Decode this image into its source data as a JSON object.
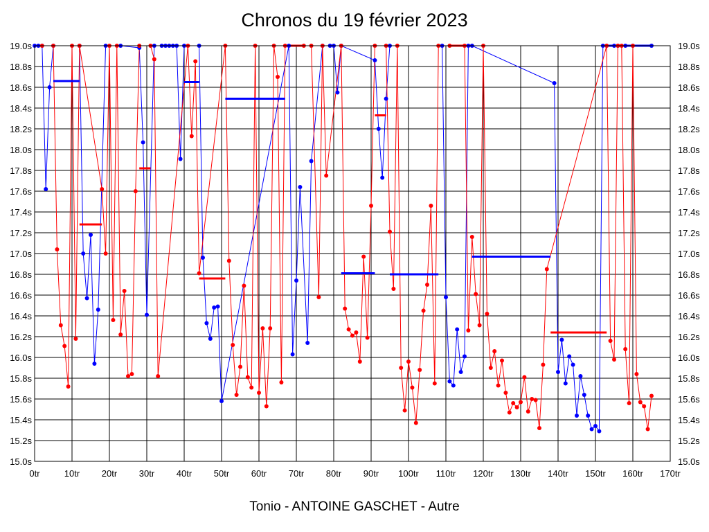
{
  "chart_data": {
    "type": "line",
    "title": "Chronos du 19 février 2023",
    "xlabel": "Tonio - ANTOINE GASCHET - Autre",
    "ylabel": "",
    "xlim": [
      0,
      170
    ],
    "ylim": [
      15.0,
      19.0
    ],
    "grid": true,
    "legend": "none",
    "x_ticks": [
      "0tr",
      "10tr",
      "20tr",
      "30tr",
      "40tr",
      "50tr",
      "60tr",
      "70tr",
      "80tr",
      "90tr",
      "100tr",
      "110tr",
      "120tr",
      "130tr",
      "140tr",
      "150tr",
      "160tr",
      "170tr"
    ],
    "y_ticks": [
      "19.0s",
      "18.8s",
      "18.6s",
      "18.4s",
      "18.2s",
      "18.0s",
      "17.8s",
      "17.6s",
      "17.4s",
      "17.2s",
      "17.0s",
      "16.8s",
      "16.6s",
      "16.4s",
      "16.2s",
      "16.0s",
      "15.8s",
      "15.6s",
      "15.4s",
      "15.2s",
      "15.0s"
    ],
    "colors": {
      "blue": "#0000ff",
      "red": "#ff0000",
      "grid": "#000000"
    },
    "series": [
      {
        "color": "#0000ff",
        "points": [
          [
            0,
            19.0
          ],
          [
            1,
            19.0
          ],
          [
            2,
            19.0
          ],
          [
            3,
            17.62
          ],
          [
            4,
            18.6
          ],
          [
            5,
            19.0
          ],
          [
            12,
            19.0
          ],
          [
            13,
            17.0
          ],
          [
            14,
            16.57
          ],
          [
            15,
            17.18
          ],
          [
            16,
            15.94
          ],
          [
            17,
            16.46
          ],
          [
            19,
            19.0
          ],
          [
            23,
            19.0
          ],
          [
            28,
            18.98
          ],
          [
            29,
            18.07
          ],
          [
            30,
            16.41
          ],
          [
            32,
            19.0
          ],
          [
            34,
            19.0
          ],
          [
            35,
            19.0
          ],
          [
            36,
            19.0
          ],
          [
            37,
            19.0
          ],
          [
            38,
            19.0
          ],
          [
            39,
            17.91
          ],
          [
            40,
            19.0
          ],
          [
            44,
            19.0
          ],
          [
            45,
            16.96
          ],
          [
            46,
            16.33
          ],
          [
            47,
            16.18
          ],
          [
            48,
            16.48
          ],
          [
            49,
            16.49
          ],
          [
            50,
            15.58
          ],
          [
            68,
            19.0
          ],
          [
            69,
            16.03
          ],
          [
            70,
            16.74
          ],
          [
            71,
            17.64
          ],
          [
            73,
            16.14
          ],
          [
            74,
            17.89
          ],
          [
            77,
            19.0
          ],
          [
            79,
            19.0
          ],
          [
            80,
            19.0
          ],
          [
            81,
            18.55
          ],
          [
            82,
            19.0
          ],
          [
            91,
            18.86
          ],
          [
            92,
            18.2
          ],
          [
            93,
            17.73
          ],
          [
            94,
            18.49
          ],
          [
            95,
            19.0
          ],
          [
            109,
            19.0
          ],
          [
            110,
            16.58
          ],
          [
            111,
            15.77
          ],
          [
            112,
            15.73
          ],
          [
            113,
            16.27
          ],
          [
            114,
            15.86
          ],
          [
            115,
            16.01
          ],
          [
            116,
            19.0
          ],
          [
            117,
            19.0
          ],
          [
            139,
            18.64
          ],
          [
            140,
            15.86
          ],
          [
            141,
            16.17
          ],
          [
            142,
            15.75
          ],
          [
            143,
            16.01
          ],
          [
            144,
            15.93
          ],
          [
            145,
            15.44
          ],
          [
            146,
            15.82
          ],
          [
            147,
            15.64
          ],
          [
            148,
            15.44
          ],
          [
            149,
            15.31
          ],
          [
            150,
            15.34
          ],
          [
            151,
            15.29
          ],
          [
            152,
            19.0
          ],
          [
            153,
            19.0
          ],
          [
            155,
            19.0
          ],
          [
            156,
            19.0
          ],
          [
            158,
            19.0
          ],
          [
            160,
            19.0
          ],
          [
            165,
            19.0
          ]
        ]
      },
      {
        "color": "#ff0000",
        "points": [
          [
            2,
            19.0
          ],
          [
            5,
            19.0
          ],
          [
            6,
            17.04
          ],
          [
            7,
            16.31
          ],
          [
            8,
            16.11
          ],
          [
            9,
            15.72
          ],
          [
            10,
            19.0
          ],
          [
            11,
            16.18
          ],
          [
            12,
            19.0
          ],
          [
            18,
            17.62
          ],
          [
            19,
            17.0
          ],
          [
            20,
            19.0
          ],
          [
            21,
            16.36
          ],
          [
            22,
            19.0
          ],
          [
            23,
            16.22
          ],
          [
            24,
            16.64
          ],
          [
            25,
            15.82
          ],
          [
            26,
            15.84
          ],
          [
            27,
            17.6
          ],
          [
            28,
            19.0
          ],
          [
            31,
            19.0
          ],
          [
            32,
            18.87
          ],
          [
            33,
            15.82
          ],
          [
            41,
            19.0
          ],
          [
            42,
            18.13
          ],
          [
            43,
            18.85
          ],
          [
            44,
            16.81
          ],
          [
            51,
            19.0
          ],
          [
            52,
            16.93
          ],
          [
            53,
            16.12
          ],
          [
            54,
            15.64
          ],
          [
            55,
            15.91
          ],
          [
            56,
            16.69
          ],
          [
            57,
            15.81
          ],
          [
            58,
            15.71
          ],
          [
            59,
            19.0
          ],
          [
            60,
            15.66
          ],
          [
            61,
            16.28
          ],
          [
            62,
            15.53
          ],
          [
            63,
            16.28
          ],
          [
            64,
            19.0
          ],
          [
            65,
            18.7
          ],
          [
            66,
            15.76
          ],
          [
            67,
            19.0
          ],
          [
            72,
            19.0
          ],
          [
            74,
            19.0
          ],
          [
            76,
            16.58
          ],
          [
            77,
            19.0
          ],
          [
            78,
            17.75
          ],
          [
            82,
            19.0
          ],
          [
            83,
            16.47
          ],
          [
            84,
            16.27
          ],
          [
            85,
            16.21
          ],
          [
            86,
            16.24
          ],
          [
            87,
            15.96
          ],
          [
            88,
            16.97
          ],
          [
            89,
            16.19
          ],
          [
            90,
            17.46
          ],
          [
            91,
            19.0
          ],
          [
            94,
            19.0
          ],
          [
            95,
            17.21
          ],
          [
            96,
            16.66
          ],
          [
            97,
            19.0
          ],
          [
            98,
            15.9
          ],
          [
            99,
            15.49
          ],
          [
            100,
            15.96
          ],
          [
            101,
            15.71
          ],
          [
            102,
            15.37
          ],
          [
            103,
            15.88
          ],
          [
            104,
            16.45
          ],
          [
            105,
            16.7
          ],
          [
            106,
            17.46
          ],
          [
            107,
            15.75
          ],
          [
            108,
            19.0
          ],
          [
            111,
            19.0
          ],
          [
            115,
            19.0
          ],
          [
            116,
            16.26
          ],
          [
            117,
            17.16
          ],
          [
            118,
            16.61
          ],
          [
            119,
            16.31
          ],
          [
            120,
            19.0
          ],
          [
            121,
            16.42
          ],
          [
            122,
            15.9
          ],
          [
            123,
            16.06
          ],
          [
            124,
            15.73
          ],
          [
            125,
            15.97
          ],
          [
            126,
            15.66
          ],
          [
            127,
            15.47
          ],
          [
            128,
            15.56
          ],
          [
            129,
            15.52
          ],
          [
            130,
            15.57
          ],
          [
            131,
            15.81
          ],
          [
            132,
            15.48
          ],
          [
            133,
            15.6
          ],
          [
            134,
            15.59
          ],
          [
            135,
            15.32
          ],
          [
            136,
            15.93
          ],
          [
            137,
            16.85
          ],
          [
            153,
            19.0
          ],
          [
            154,
            16.16
          ],
          [
            155,
            15.98
          ],
          [
            156,
            19.0
          ],
          [
            157,
            19.0
          ],
          [
            158,
            16.08
          ],
          [
            159,
            15.56
          ],
          [
            160,
            19.0
          ],
          [
            161,
            15.84
          ],
          [
            162,
            15.57
          ],
          [
            163,
            15.53
          ],
          [
            164,
            15.31
          ],
          [
            165,
            15.63
          ]
        ]
      }
    ],
    "average_segments": [
      {
        "color": "#0000ff",
        "x0": 5,
        "x1": 12,
        "y": 18.66
      },
      {
        "color": "#ff0000",
        "x0": 12,
        "x1": 18,
        "y": 17.28
      },
      {
        "color": "#ff0000",
        "x0": 28,
        "x1": 31,
        "y": 17.82
      },
      {
        "color": "#0000ff",
        "x0": 40,
        "x1": 44,
        "y": 18.65
      },
      {
        "color": "#ff0000",
        "x0": 44,
        "x1": 51,
        "y": 16.76
      },
      {
        "color": "#0000ff",
        "x0": 51,
        "x1": 67,
        "y": 18.49
      },
      {
        "color": "#ff0000",
        "x0": 67,
        "x1": 72,
        "y": 19.0
      },
      {
        "color": "#0000ff",
        "x0": 82,
        "x1": 91,
        "y": 16.81
      },
      {
        "color": "#ff0000",
        "x0": 91,
        "x1": 94,
        "y": 18.33
      },
      {
        "color": "#0000ff",
        "x0": 95,
        "x1": 108,
        "y": 16.8
      },
      {
        "color": "#ff0000",
        "x0": 111,
        "x1": 117,
        "y": 19.0
      },
      {
        "color": "#0000ff",
        "x0": 117,
        "x1": 138,
        "y": 16.97
      },
      {
        "color": "#ff0000",
        "x0": 138,
        "x1": 153,
        "y": 16.24
      },
      {
        "color": "#0000ff",
        "x0": 153,
        "x1": 165,
        "y": 19.0
      }
    ]
  }
}
